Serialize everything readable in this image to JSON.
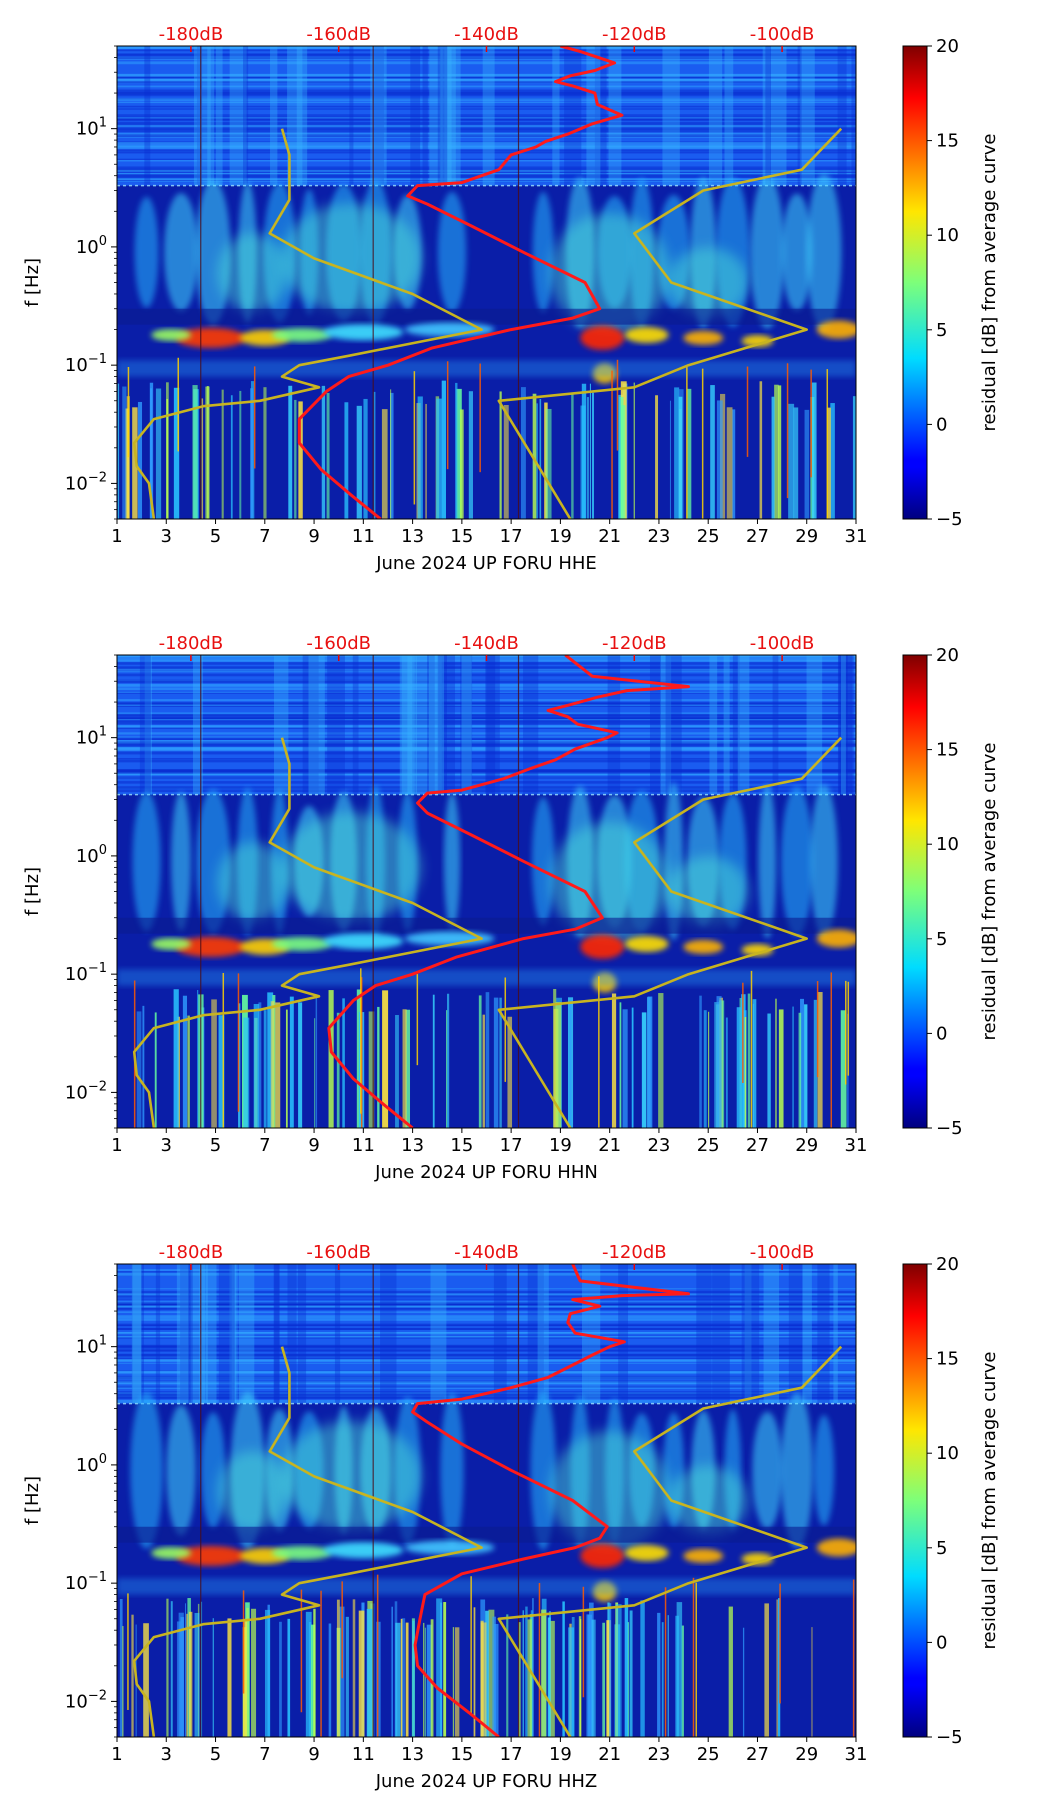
{
  "figure": {
    "colorbar_label": "residual [dB] from average curve",
    "ylabel": "f [Hz]"
  },
  "chart_data": [
    {
      "type": "heatmap",
      "title": "",
      "xlabel": "June 2024 UP FORU  HHE",
      "ylabel": "f [Hz]",
      "xlim": [
        1,
        31
      ],
      "ylim": [
        0.005,
        50
      ],
      "yscale": "log",
      "xticks": [
        "1",
        "3",
        "5",
        "7",
        "9",
        "11",
        "13",
        "15",
        "17",
        "19",
        "21",
        "23",
        "25",
        "27",
        "29",
        "31"
      ],
      "yticks": [
        "10^-2",
        "10^-1",
        "10^0",
        "10^1"
      ],
      "top_ticks": [
        "-180dB",
        "-160dB",
        "-140dB",
        "-120dB",
        "-100dB"
      ],
      "colorbar": {
        "range": [
          -5,
          20
        ],
        "ticks": [
          "−5",
          "0",
          "5",
          "10",
          "15",
          "20"
        ],
        "label": "residual [dB] from average curve"
      },
      "series": [
        {
          "name": "average PSD (red)",
          "color": "#ff1a1a",
          "x": [
            11.7,
            10.5,
            9.3,
            8.4,
            8.4,
            9.5,
            10.4,
            12.0,
            13.8,
            17.0,
            19.5,
            20.6,
            20.0,
            17.5,
            15.4,
            13.6,
            12.8,
            13.2,
            15.0,
            16.5,
            17.0,
            18.0,
            18.4,
            19.3,
            20.3,
            21.5,
            20.5,
            20.4,
            19.5,
            18.8,
            19.4,
            20.4,
            21.2,
            19.8,
            19.0
          ],
          "y": [
            0.005,
            0.008,
            0.013,
            0.022,
            0.035,
            0.06,
            0.08,
            0.1,
            0.14,
            0.2,
            0.25,
            0.3,
            0.5,
            0.9,
            1.5,
            2.3,
            2.7,
            3.3,
            3.5,
            4.5,
            6.0,
            7.0,
            7.8,
            9.0,
            11.0,
            13.0,
            16.0,
            20.0,
            23.0,
            25.0,
            28.0,
            31.0,
            36.0,
            45.0,
            50.0
          ]
        },
        {
          "name": "noise model (yellow)",
          "color": "#c8b420",
          "x": [
            2.5,
            2.3,
            1.8,
            1.7,
            2.5,
            4.5,
            6.8,
            9.2,
            7.7,
            8.4,
            10.4,
            15.8,
            13.0,
            9.0,
            7.2,
            8.0,
            8.0,
            7.7
          ],
          "y": [
            0.005,
            0.01,
            0.014,
            0.022,
            0.035,
            0.045,
            0.05,
            0.065,
            0.08,
            0.1,
            0.12,
            0.2,
            0.4,
            0.8,
            1.3,
            2.5,
            6.0,
            10.0
          ]
        },
        {
          "name": "noise model (yellow) right",
          "color": "#c8b420",
          "x": [
            19.4,
            16.5,
            22.0,
            24.2,
            29.0,
            23.5,
            22.0,
            24.8,
            28.8,
            30.4
          ],
          "y": [
            0.005,
            0.05,
            0.065,
            0.1,
            0.2,
            0.5,
            1.3,
            3.0,
            4.5,
            10.0
          ]
        }
      ]
    },
    {
      "type": "heatmap",
      "title": "",
      "xlabel": "June 2024 UP FORU  HHN",
      "ylabel": "f [Hz]",
      "xlim": [
        1,
        31
      ],
      "ylim": [
        0.005,
        50
      ],
      "yscale": "log",
      "xticks": [
        "1",
        "3",
        "5",
        "7",
        "9",
        "11",
        "13",
        "15",
        "17",
        "19",
        "21",
        "23",
        "25",
        "27",
        "29",
        "31"
      ],
      "yticks": [
        "10^-2",
        "10^-1",
        "10^0",
        "10^1"
      ],
      "top_ticks": [
        "-180dB",
        "-160dB",
        "-140dB",
        "-120dB",
        "-100dB"
      ],
      "colorbar": {
        "range": [
          -5,
          20
        ],
        "ticks": [
          "−5",
          "0",
          "5",
          "10",
          "15",
          "20"
        ],
        "label": "residual [dB] from average curve"
      },
      "series": [
        {
          "name": "average PSD (red)",
          "color": "#ff1a1a",
          "x": [
            13.0,
            11.8,
            10.6,
            9.7,
            9.6,
            10.6,
            11.5,
            13.0,
            14.8,
            17.5,
            19.6,
            20.7,
            20.0,
            17.5,
            15.4,
            13.6,
            13.2,
            13.6,
            15.0,
            16.7,
            17.8,
            18.8,
            19.6,
            20.9,
            21.3,
            19.7,
            19.3,
            18.5,
            19.4,
            20.5,
            21.7,
            24.2,
            20.3,
            19.2
          ],
          "y": [
            0.005,
            0.008,
            0.013,
            0.022,
            0.035,
            0.06,
            0.08,
            0.1,
            0.14,
            0.2,
            0.24,
            0.3,
            0.5,
            0.9,
            1.5,
            2.3,
            2.8,
            3.4,
            3.6,
            4.5,
            5.5,
            6.5,
            8.0,
            10.0,
            11.0,
            13.0,
            15.0,
            17.0,
            19.0,
            22.0,
            25.0,
            27.0,
            33.0,
            50.0
          ]
        },
        {
          "name": "noise model (yellow)",
          "color": "#c8b420",
          "x": [
            2.5,
            2.3,
            1.8,
            1.7,
            2.5,
            4.5,
            6.8,
            9.2,
            7.7,
            8.4,
            10.4,
            15.8,
            13.0,
            9.0,
            7.2,
            8.0,
            8.0,
            7.7
          ],
          "y": [
            0.005,
            0.01,
            0.014,
            0.022,
            0.035,
            0.045,
            0.05,
            0.065,
            0.08,
            0.1,
            0.12,
            0.2,
            0.4,
            0.8,
            1.3,
            2.5,
            6.0,
            10.0
          ]
        },
        {
          "name": "noise model (yellow) right",
          "color": "#c8b420",
          "x": [
            19.4,
            16.5,
            22.0,
            24.2,
            29.0,
            23.5,
            22.0,
            24.8,
            28.8,
            30.4
          ],
          "y": [
            0.005,
            0.05,
            0.065,
            0.1,
            0.2,
            0.5,
            1.3,
            3.0,
            4.5,
            10.0
          ]
        }
      ]
    },
    {
      "type": "heatmap",
      "title": "",
      "xlabel": "June 2024 UP FORU  HHZ",
      "ylabel": "f [Hz]",
      "xlim": [
        1,
        31
      ],
      "ylim": [
        0.005,
        50
      ],
      "yscale": "log",
      "xticks": [
        "1",
        "3",
        "5",
        "7",
        "9",
        "11",
        "13",
        "15",
        "17",
        "19",
        "21",
        "23",
        "25",
        "27",
        "29",
        "31"
      ],
      "yticks": [
        "10^-2",
        "10^-1",
        "10^0",
        "10^1"
      ],
      "top_ticks": [
        "-180dB",
        "-160dB",
        "-140dB",
        "-120dB",
        "-100dB"
      ],
      "colorbar": {
        "range": [
          -5,
          20
        ],
        "ticks": [
          "−5",
          "0",
          "5",
          "10",
          "15",
          "20"
        ],
        "label": "residual [dB] from average curve"
      },
      "series": [
        {
          "name": "average PSD (red)",
          "color": "#ff1a1a",
          "x": [
            16.5,
            15.3,
            14.0,
            13.2,
            13.1,
            13.3,
            13.5,
            15.0,
            17.5,
            19.6,
            20.6,
            20.9,
            19.5,
            17.0,
            15.0,
            13.6,
            13.0,
            13.2,
            15.0,
            17.0,
            18.5,
            19.5,
            20.3,
            21.0,
            21.6,
            19.6,
            19.3,
            19.4,
            20.6,
            19.5,
            21.5,
            24.2,
            19.8,
            19.5
          ],
          "y": [
            0.005,
            0.008,
            0.013,
            0.02,
            0.03,
            0.05,
            0.08,
            0.12,
            0.16,
            0.2,
            0.24,
            0.3,
            0.5,
            0.9,
            1.5,
            2.3,
            2.8,
            3.3,
            3.6,
            4.5,
            5.5,
            7.0,
            8.5,
            10.0,
            11.0,
            13.0,
            16.0,
            19.0,
            22.0,
            25.0,
            27.0,
            28.0,
            36.0,
            50.0
          ]
        },
        {
          "name": "noise model (yellow)",
          "color": "#c8b420",
          "x": [
            2.5,
            2.3,
            1.8,
            1.7,
            2.5,
            4.5,
            6.8,
            9.2,
            7.7,
            8.4,
            10.4,
            15.8,
            13.0,
            9.0,
            7.2,
            8.0,
            8.0,
            7.7
          ],
          "y": [
            0.005,
            0.01,
            0.014,
            0.022,
            0.035,
            0.045,
            0.05,
            0.065,
            0.08,
            0.1,
            0.12,
            0.2,
            0.4,
            0.8,
            1.3,
            2.5,
            6.0,
            10.0
          ]
        },
        {
          "name": "noise model (yellow) right",
          "color": "#c8b420",
          "x": [
            19.4,
            16.5,
            22.0,
            24.2,
            29.0,
            23.5,
            22.0,
            24.8,
            28.8,
            30.4
          ],
          "y": [
            0.005,
            0.05,
            0.065,
            0.1,
            0.2,
            0.5,
            1.3,
            3.0,
            4.5,
            10.0
          ]
        }
      ]
    }
  ]
}
